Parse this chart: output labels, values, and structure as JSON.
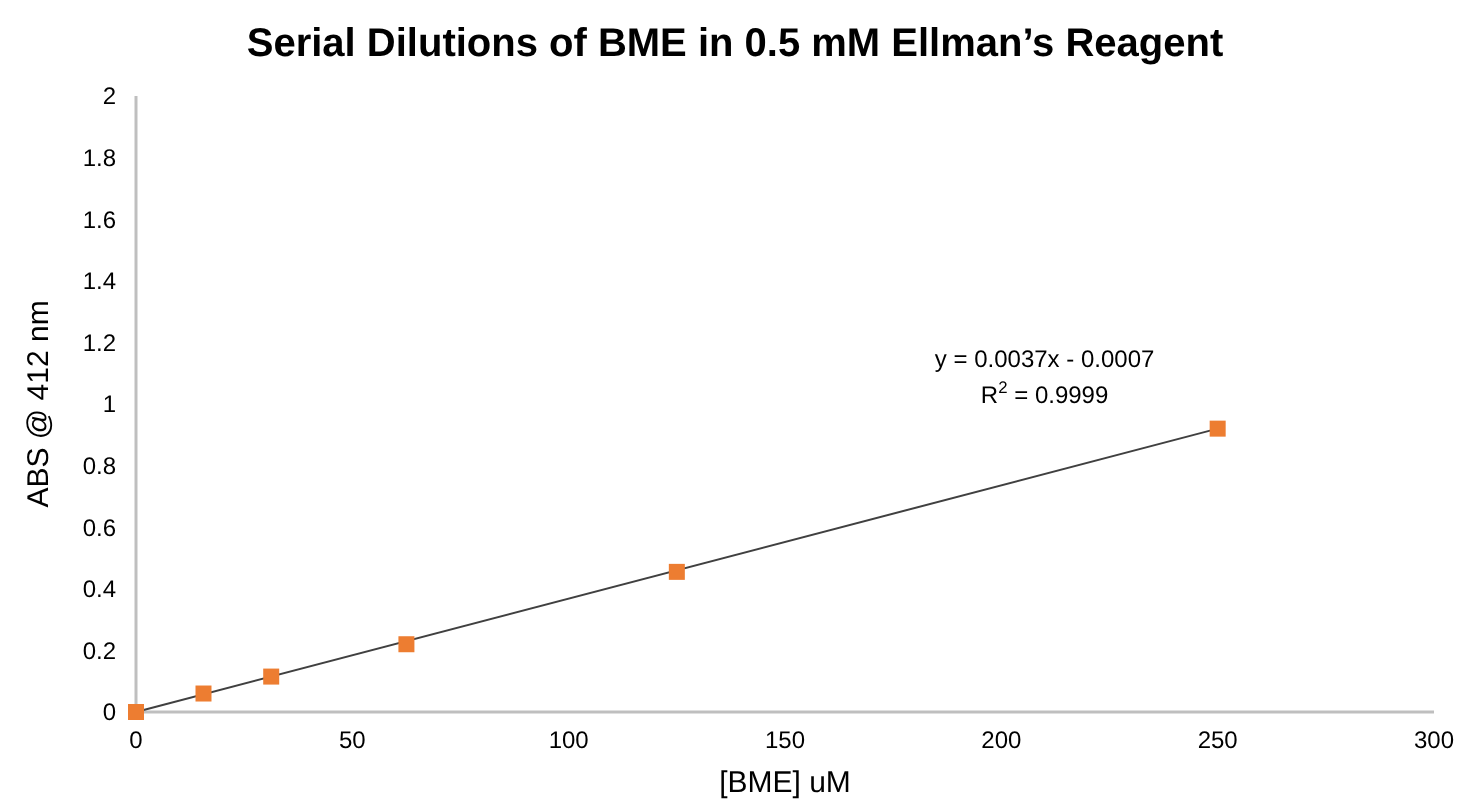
{
  "chart_data": {
    "type": "scatter",
    "title": "Serial Dilutions of BME in 0.5 mM Ellman’s Reagent",
    "xlabel": "[BME] uM",
    "ylabel": "ABS @ 412 nm",
    "xlim": [
      0,
      300
    ],
    "xticks": [
      0,
      50,
      100,
      150,
      200,
      250,
      300
    ],
    "ylim": [
      0,
      2
    ],
    "yticks": [
      0,
      0.2,
      0.4,
      0.6,
      0.8,
      1,
      1.2,
      1.4,
      1.6,
      1.8,
      2
    ],
    "grid": false,
    "marker": "square",
    "series": [
      {
        "color": "#ed7d31",
        "x": [
          0,
          15.6,
          31.25,
          62.5,
          125,
          250
        ],
        "values": [
          0,
          0.06,
          0.115,
          0.22,
          0.455,
          0.92
        ]
      },
      {
        "type": "line",
        "color": "#404040",
        "marker": "none",
        "line_style": "solid",
        "x": [
          0,
          250
        ],
        "values": [
          0,
          0.92
        ]
      }
    ],
    "annotations": [
      "y = 0.0037x - 0.0007",
      "R$^{2}$ = 0.9999"
    ]
  }
}
